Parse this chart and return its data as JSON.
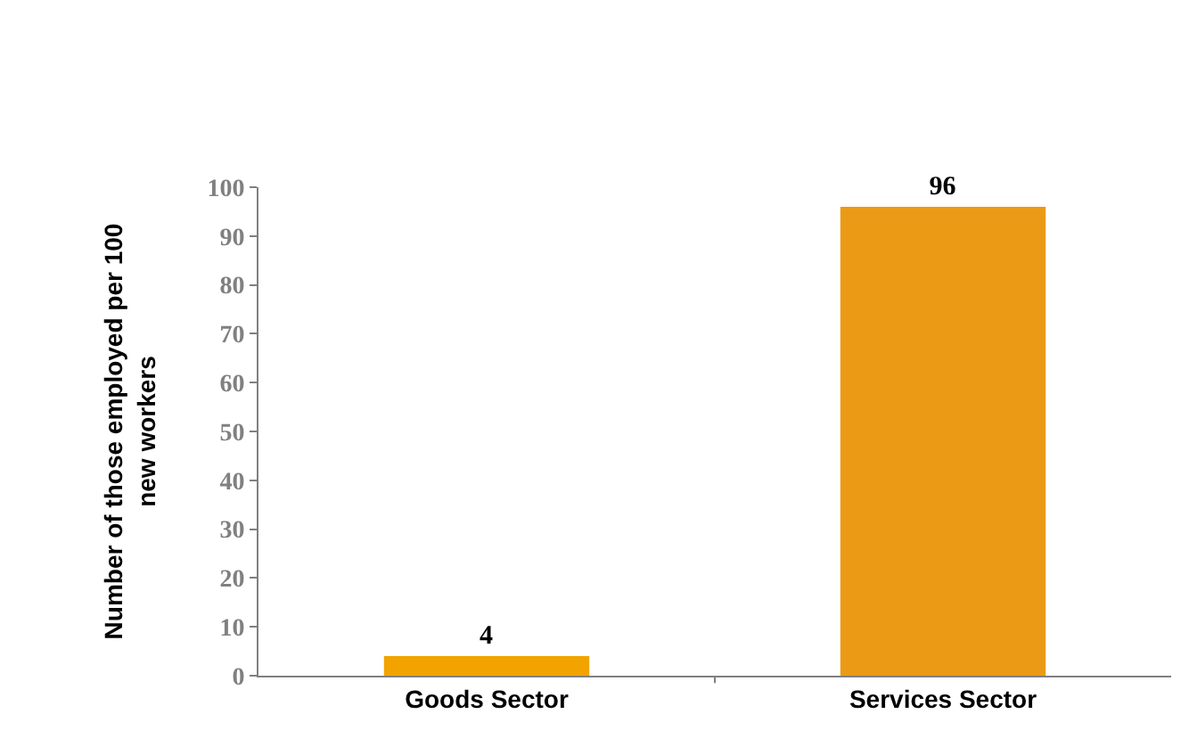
{
  "chart_data": {
    "type": "bar",
    "ylabel": "Number of those employed per 100\nnew workers",
    "categories": [
      "Goods Sector",
      "Services Sector"
    ],
    "values": [
      4,
      96
    ],
    "colors": [
      "#f2a300",
      "#eb9a16"
    ],
    "ylim": [
      0,
      100
    ],
    "yticks": [
      0,
      10,
      20,
      30,
      40,
      50,
      60,
      70,
      80,
      90,
      100
    ],
    "data_labels": true
  }
}
